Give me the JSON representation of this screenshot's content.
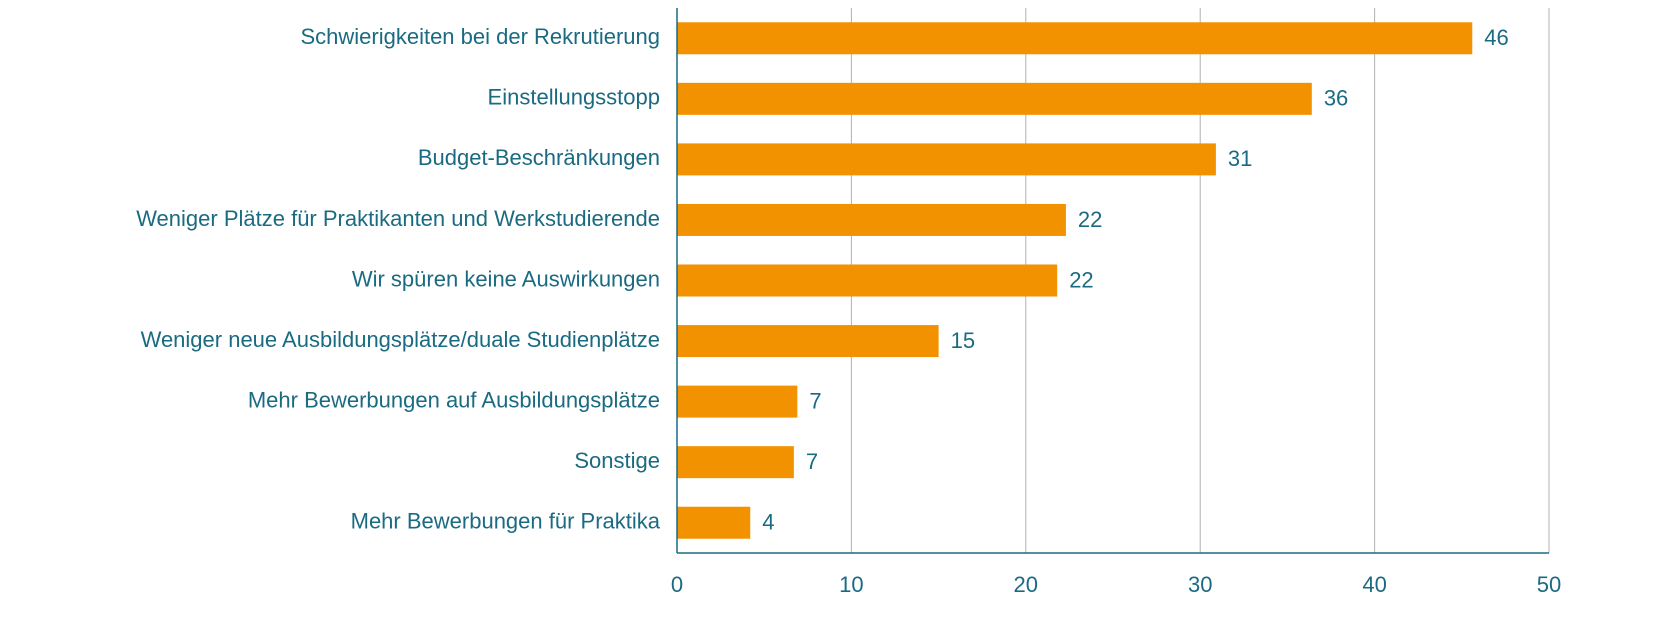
{
  "chart_data": {
    "type": "barh",
    "categories": [
      "Schwierigkeiten bei der Rekrutierung",
      "Einstellungsstopp",
      "Budget-Beschränkungen",
      "Weniger Plätze für Praktikanten und Werkstudierende",
      "Wir spüren keine Auswirkungen",
      "Weniger neue Ausbildungsplätze/duale Studienplätze",
      "Mehr Bewerbungen auf Ausbildungsplätze",
      "Sonstige",
      "Mehr Bewerbungen für Praktika"
    ],
    "values": [
      45.6,
      36.4,
      30.9,
      22.3,
      21.8,
      15.0,
      6.9,
      6.7,
      4.2
    ],
    "value_labels": [
      "46",
      "36",
      "31",
      "22",
      "22",
      "15",
      "7",
      "7",
      "4"
    ],
    "color": "#f39200",
    "xlim": [
      0,
      50
    ],
    "xticks": [
      0,
      10,
      20,
      30,
      40,
      50
    ],
    "grid": true
  }
}
